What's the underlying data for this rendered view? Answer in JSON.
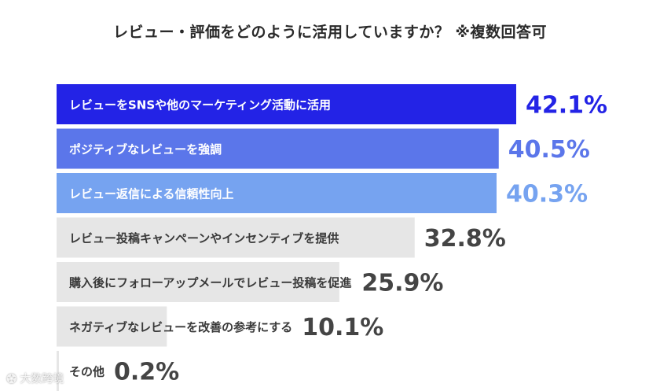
{
  "chart_data": {
    "type": "bar",
    "orientation": "horizontal",
    "title": "レビュー・評価をどのように活用していますか？ ※複数回答可",
    "xlim": [
      0,
      45
    ],
    "grid": false,
    "legend": "none",
    "categories": [
      "レビューをSNSや他のマーケティング活動に活用",
      "ポジティブなレビューを強調",
      "レビュー返信による信頼性向上",
      "レビュー投稿キャンペーンやインセンティブを提供",
      "購入後にフォローアップメールでレビュー投稿を促進",
      "ネガティブなレビューを改善の参考にする",
      "その他"
    ],
    "values": [
      42.1,
      40.5,
      40.3,
      32.8,
      25.9,
      10.1,
      0.2
    ],
    "value_labels": [
      "42.1%",
      "40.5%",
      "40.3%",
      "32.8%",
      "25.9%",
      "10.1%",
      "0.2%"
    ],
    "bar_colors": [
      "#2323e6",
      "#5b76ea",
      "#76a3f0",
      "#e6e6e6",
      "#e6e6e6",
      "#e6e6e6",
      "#e6e6e6"
    ],
    "bar_label_colors": [
      "#ffffff",
      "#ffffff",
      "#ffffff",
      "#3a3a3a",
      "#3a3a3a",
      "#3a3a3a",
      "#3a3a3a"
    ],
    "value_label_colors": [
      "#2323e6",
      "#5b76ea",
      "#76a3f0",
      "#444444",
      "#444444",
      "#444444",
      "#444444"
    ]
  },
  "watermark": {
    "icon": "logo-icon",
    "text": "大数跨境"
  }
}
